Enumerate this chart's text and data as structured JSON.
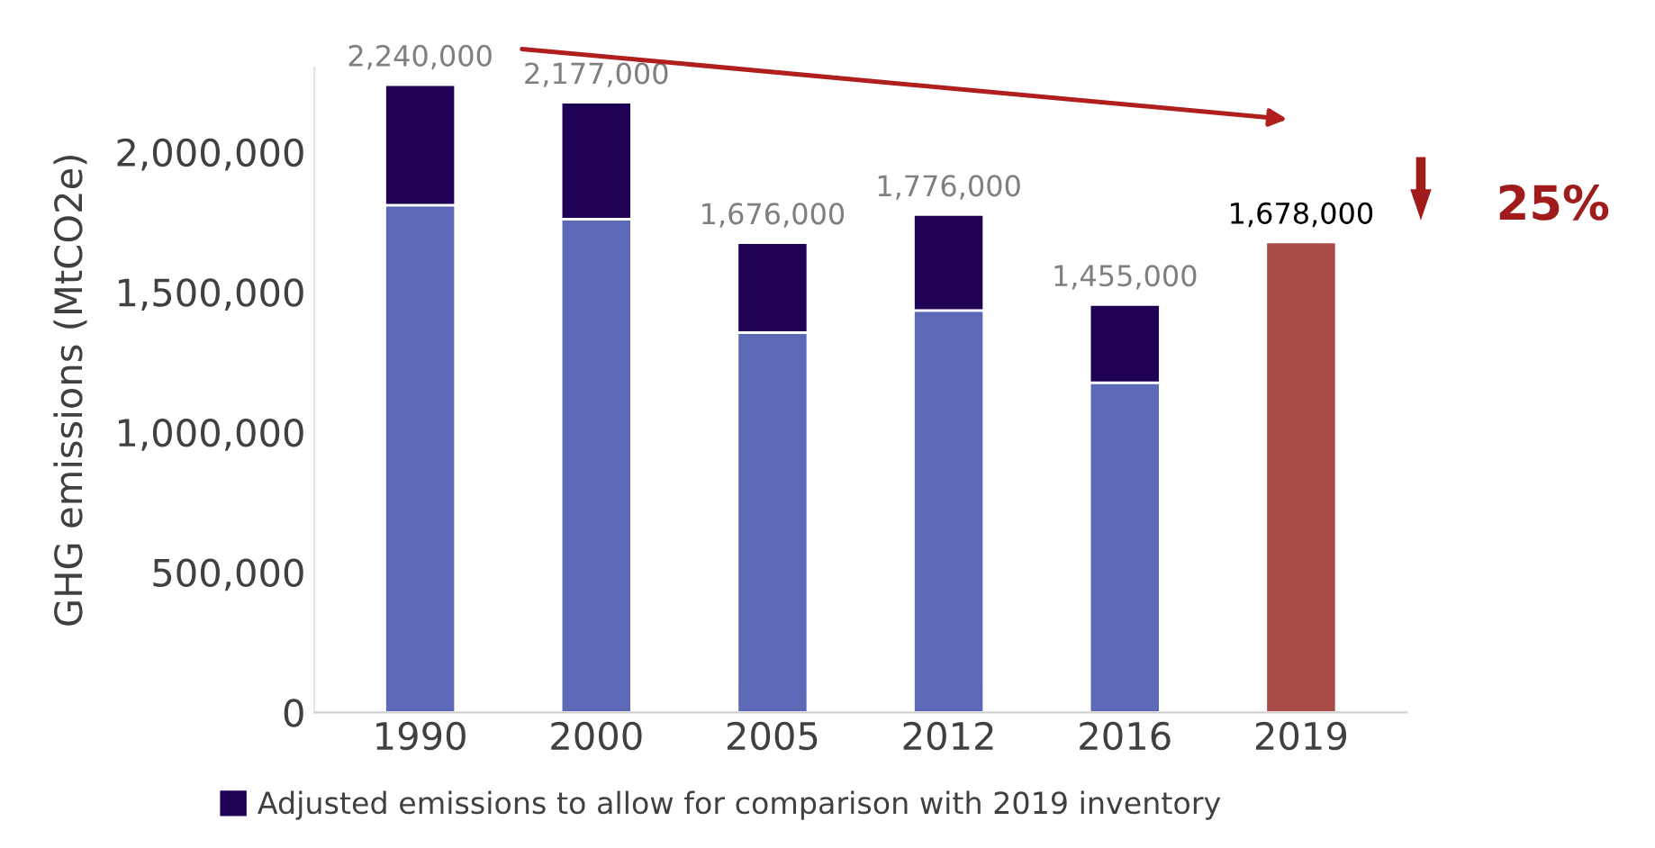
{
  "chart_data": {
    "type": "bar",
    "stacked": true,
    "ylabel": "GHG emissions (MtCO2e)",
    "categories": [
      "1990",
      "2000",
      "2005",
      "2012",
      "2016",
      "2019"
    ],
    "series": [
      {
        "colors": [
          "#5c69b6",
          "#5c69b6",
          "#5c69b6",
          "#5c69b6",
          "#5c69b6",
          "#a84a48"
        ],
        "values": [
          1810000,
          1760000,
          1355000,
          1434000,
          1176000,
          1678000
        ]
      },
      {
        "name": "Adjusted emissions to allow for comparison with 2019 inventory",
        "color": "#1e0055",
        "values": [
          430000,
          417000,
          321000,
          342000,
          279000,
          null
        ]
      }
    ],
    "totals": [
      "2,240,000",
      "2,177,000",
      "1,676,000",
      "1,776,000",
      "1,455,000",
      "1,678,000"
    ],
    "annotations": [
      "25%"
    ],
    "ylim": [
      0,
      2300000
    ],
    "yticks": [
      {
        "value": 0,
        "label": "0"
      },
      {
        "value": 500000,
        "label": "500,000"
      },
      {
        "value": 1000000,
        "label": "1,000,000"
      },
      {
        "value": 1500000,
        "label": "1,500,000"
      },
      {
        "value": 2000000,
        "label": "2,000,000"
      }
    ],
    "grid": false,
    "legend": "bottom"
  }
}
